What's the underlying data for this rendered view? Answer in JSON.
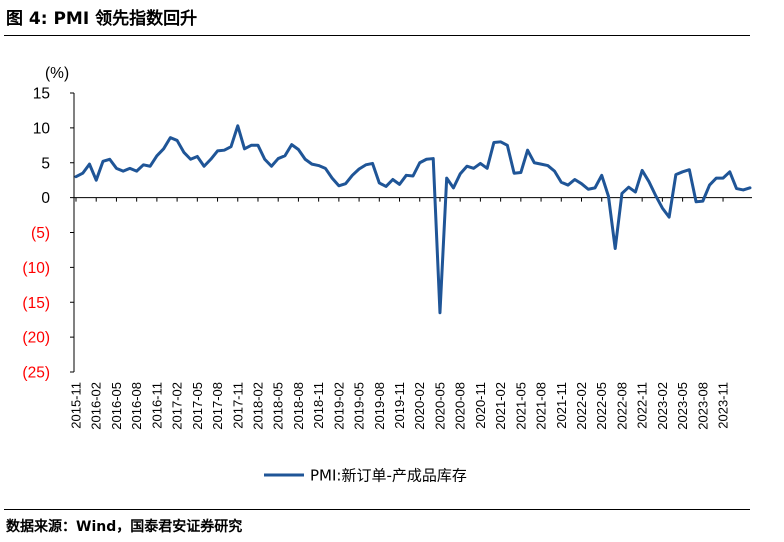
{
  "header": {
    "figure_title": "图 4: PMI 领先指数回升",
    "source": "数据来源：Wind，国泰君安证券研究"
  },
  "colors": {
    "series": "#1F5597",
    "negative": "#FF0000",
    "axis": "#000000"
  },
  "chart_data": {
    "type": "line",
    "ylabel": "(%)",
    "ylim": [
      -25,
      15
    ],
    "yticks": [
      15,
      10,
      5,
      0,
      -5,
      -10,
      -15,
      -20,
      -25
    ],
    "ytick_labels": [
      "15",
      "10",
      "5",
      "0",
      "(5)",
      "(10)",
      "(15)",
      "(20)",
      "(25)"
    ],
    "xtick_labels": [
      "2015-11",
      "2016-02",
      "2016-05",
      "2016-08",
      "2016-11",
      "2017-02",
      "2017-05",
      "2017-08",
      "2017-11",
      "2018-02",
      "2018-05",
      "2018-08",
      "2018-11",
      "2019-02",
      "2019-05",
      "2019-08",
      "2019-11",
      "2020-02",
      "2020-05",
      "2020-08",
      "2020-11",
      "2021-02",
      "2021-05",
      "2021-08",
      "2021-11",
      "2022-02",
      "2022-05",
      "2022-08",
      "2022-11",
      "2023-02",
      "2023-05",
      "2023-08",
      "2023-11"
    ],
    "legend": "top-right",
    "series": [
      {
        "name": "PMI:新订单-产成品库存",
        "values": [
          3.0,
          3.5,
          4.8,
          2.5,
          5.2,
          5.5,
          4.2,
          3.8,
          4.2,
          3.8,
          4.7,
          4.5,
          6.0,
          7.0,
          8.6,
          8.2,
          6.5,
          5.5,
          5.9,
          4.5,
          5.5,
          6.7,
          6.8,
          7.3,
          10.3,
          7.0,
          7.5,
          7.5,
          5.5,
          4.5,
          5.6,
          6.0,
          7.6,
          6.9,
          5.5,
          4.8,
          4.6,
          4.2,
          2.8,
          1.7,
          2.0,
          3.2,
          4.1,
          4.7,
          4.9,
          2.1,
          1.6,
          2.6,
          1.9,
          3.2,
          3.1,
          5.0,
          5.5,
          5.6,
          -16.5,
          2.8,
          1.4,
          3.4,
          4.5,
          4.2,
          4.9,
          4.2,
          7.9,
          8.0,
          7.5,
          3.5,
          3.6,
          6.8,
          5.0,
          4.8,
          4.6,
          3.8,
          2.2,
          1.8,
          2.6,
          2.0,
          1.2,
          1.4,
          3.2,
          0.2,
          -7.3,
          0.6,
          1.5,
          0.8,
          3.9,
          2.3,
          0.3,
          -1.5,
          -2.8,
          3.3,
          3.7,
          4.0,
          -0.6,
          -0.5,
          1.8,
          2.8,
          2.8,
          3.7,
          1.3,
          1.1,
          1.4
        ]
      }
    ]
  }
}
